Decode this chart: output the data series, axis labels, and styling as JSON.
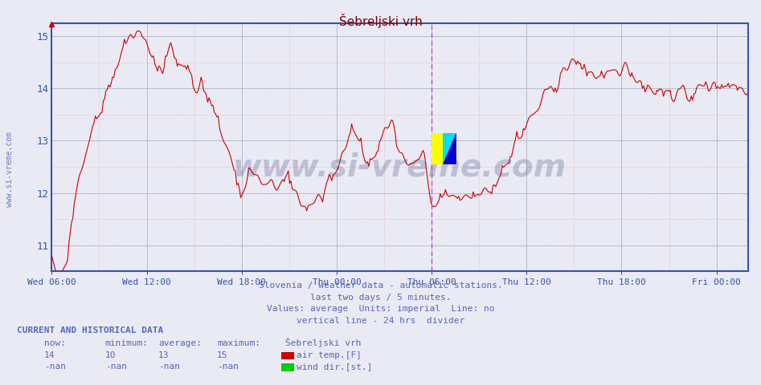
{
  "title": "Šebreljski vrh",
  "title_color": "#800000",
  "bg_color": "#eaeaf4",
  "plot_bg_color": "#eaeaf4",
  "line_color": "#cc0000",
  "line_width": 0.8,
  "grid_major_color": "#aaaacc",
  "grid_minor_color": "#ddaaaa",
  "ylim_low": 10.5,
  "ylim_high": 15.25,
  "yticks": [
    11,
    12,
    13,
    14,
    15
  ],
  "tick_color": "#3355aa",
  "axis_color": "#3355aa",
  "divider_color": "#cc44cc",
  "footer_lines": [
    "Slovenia / weather data - automatic stations.",
    "last two days / 5 minutes.",
    "Values: average  Units: imperial  Line: no",
    "vertical line - 24 hrs  divider"
  ],
  "footer_color": "#5566bb",
  "watermark": "www.si-vreme.com",
  "watermark_color": "#222266",
  "watermark_alpha": 0.22,
  "sidebar_text": "www.si-vreme.com",
  "sidebar_color": "#5566bb",
  "xtick_labels": [
    "Wed 06:00",
    "Wed 12:00",
    "Wed 18:00",
    "Thu 00:00",
    "Thu 06:00",
    "Thu 12:00",
    "Thu 18:00",
    "Fri 00:00"
  ],
  "current_data": {
    "now": "14",
    "minimum": "10",
    "average": "13",
    "maximum": "15",
    "station": "Šebreljski vrh",
    "row1_legend": "air temp.[F]",
    "row1_color": "#cc0000",
    "row2_now": "-nan",
    "row2_min": "-nan",
    "row2_avg": "-nan",
    "row2_max": "-nan",
    "row2_legend": "wind dir.[st.]",
    "row2_color": "#00cc00"
  }
}
